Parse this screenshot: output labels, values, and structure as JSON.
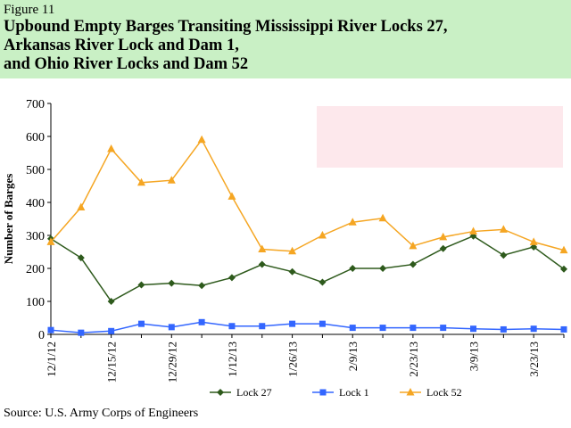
{
  "header": {
    "figure_label": "Figure 11",
    "title_lines": [
      "Upbound Empty Barges Transiting Mississippi River Locks 27,",
      "Arkansas River Lock and Dam 1,",
      "and Ohio River Locks and Dam 52"
    ]
  },
  "source": "Source:  U.S. Army Corps of Engineers",
  "chart_data": {
    "type": "line",
    "ylabel": "Number  of Barges",
    "xlabel": "",
    "ylim": [
      0,
      700
    ],
    "yticks": [
      0,
      100,
      200,
      300,
      400,
      500,
      600,
      700
    ],
    "x": [
      "12/1/12",
      "12/8/12",
      "12/15/12",
      "12/22/12",
      "12/29/12",
      "1/5/13",
      "1/12/13",
      "1/19/13",
      "1/26/13",
      "2/2/13",
      "2/9/13",
      "2/16/13",
      "2/23/13",
      "3/2/13",
      "3/9/13",
      "3/16/13",
      "3/23/13",
      "3/30/13"
    ],
    "x_tick_labels": [
      "12/1/12",
      "12/15/12",
      "12/29/12",
      "1/12/13",
      "1/26/13",
      "2/9/13",
      "2/23/13",
      "3/9/13",
      "3/23/13"
    ],
    "grid": false,
    "legend_position": "bottom",
    "series": [
      {
        "name": "Lock 27",
        "color": "#2e5a1c",
        "marker": "diamond",
        "values": [
          290,
          232,
          100,
          150,
          155,
          148,
          172,
          212,
          190,
          158,
          200,
          200,
          212,
          260,
          298,
          240,
          265,
          198
        ]
      },
      {
        "name": "Lock 1",
        "color": "#3366ff",
        "marker": "square",
        "values": [
          13,
          5,
          10,
          32,
          22,
          37,
          25,
          25,
          32,
          32,
          20,
          20,
          20,
          20,
          17,
          15,
          17,
          15
        ]
      },
      {
        "name": "Lock 52",
        "color": "#f5a623",
        "marker": "triangle",
        "values": [
          280,
          385,
          562,
          460,
          467,
          590,
          418,
          258,
          252,
          300,
          340,
          352,
          268,
          295,
          312,
          318,
          280,
          255
        ]
      }
    ]
  },
  "colors": {
    "header_background": "#c9f0c5",
    "highlight_box": "#fde8ec"
  }
}
